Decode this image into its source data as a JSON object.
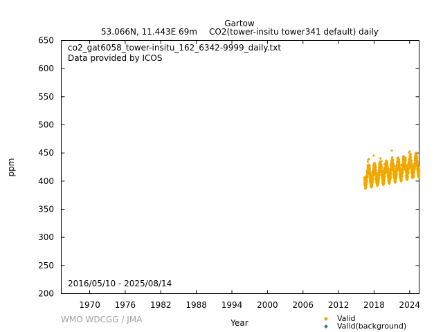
{
  "chart_data": {
    "type": "scatter",
    "title": "Gartow",
    "subtitle_left": "53.066N, 11.443E 69m",
    "subtitle_right": "CO2(tower-insitu tower341 default) daily",
    "filename": "co2_gat6058_tower-insitu_162_6342-9999_daily.txt",
    "provider": "Data provided by ICOS",
    "date_range": "2016/05/10 - 2025/08/14",
    "xlabel": "Year",
    "ylabel": "ppm",
    "credit": "WMO WDCGG / JMA",
    "xlim": [
      1965.2,
      2025.6
    ],
    "ylim": [
      200,
      650
    ],
    "x_ticks": [
      1970,
      1976,
      1982,
      1988,
      1994,
      2000,
      2006,
      2012,
      2018,
      2024
    ],
    "x_tick_labels": [
      "1970",
      "1976",
      "1982",
      "1988",
      "1994",
      "2000",
      "2006",
      "2012",
      "2018",
      "2024"
    ],
    "y_ticks": [
      200,
      250,
      300,
      350,
      400,
      450,
      500,
      550,
      600,
      650
    ],
    "y_tick_labels": [
      "200",
      "250",
      "300",
      "350",
      "400",
      "450",
      "500",
      "550",
      "600",
      "650"
    ],
    "legend": [
      {
        "label": "Valid",
        "color": "#f0a800"
      },
      {
        "label": "Valid(background)",
        "color": "#2a8a6a"
      }
    ],
    "series": [
      {
        "name": "Valid",
        "color": "#f0a800",
        "x_start": 2016.36,
        "x_end": 2025.62,
        "approx_trend_start": 408,
        "approx_trend_end": 428,
        "approx_seasonal_amplitude": 14
      }
    ]
  }
}
